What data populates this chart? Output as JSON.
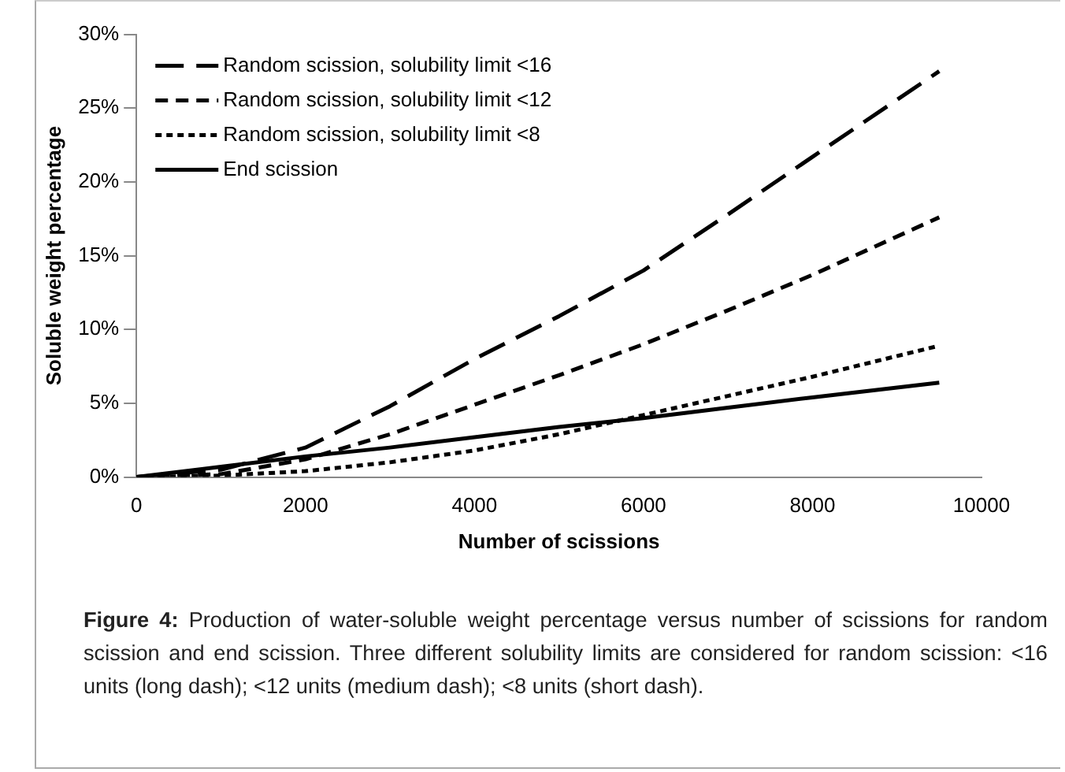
{
  "chart_data": {
    "type": "line",
    "xlabel": "Number of scissions",
    "ylabel": "Soluble weight percentage",
    "annotations": [
      "Figure 4: Production of water-soluble weight percentage versus number of scissions for random scission and end scission. Three different solubility limits are considered for random scission: <16 units (long dash); <12 units (medium dash); <8 units (short dash)."
    ],
    "x": [
      0,
      1000,
      2000,
      3000,
      4000,
      5000,
      6000,
      7000,
      8000,
      9500
    ],
    "series": [
      {
        "name": "Random scission, solubility limit <16",
        "color": "#000000",
        "line_style": "dashed",
        "values": [
          0,
          0.5,
          2.0,
          4.8,
          8.0,
          10.9,
          14.0,
          17.8,
          21.7,
          27.5
        ]
      },
      {
        "name": "Random scission, solubility limit <12",
        "color": "#000000",
        "line_style": "dashed",
        "values": [
          0,
          0.2,
          1.2,
          2.9,
          4.9,
          6.9,
          9.0,
          11.3,
          13.7,
          17.6
        ]
      },
      {
        "name": "Random scission, solubility limit <8",
        "color": "#000000",
        "line_style": "dotted",
        "values": [
          0,
          0.1,
          0.4,
          1.0,
          1.8,
          2.9,
          4.2,
          5.5,
          6.8,
          8.9
        ]
      },
      {
        "name": "End scission",
        "color": "#000000",
        "line_style": "solid",
        "values": [
          0,
          0.7,
          1.4,
          2.0,
          2.7,
          3.4,
          4.0,
          4.7,
          5.4,
          6.4
        ]
      }
    ],
    "xlim": [
      0,
      10000
    ],
    "xticks": [
      0,
      2000,
      4000,
      6000,
      8000,
      10000
    ],
    "ylim": [
      0,
      30
    ],
    "yticks": [
      {
        "value": 0,
        "label": "0%"
      },
      {
        "value": 5,
        "label": "5%"
      },
      {
        "value": 10,
        "label": "10%"
      },
      {
        "value": 15,
        "label": "15%"
      },
      {
        "value": 20,
        "label": "20%"
      },
      {
        "value": 25,
        "label": "25%"
      },
      {
        "value": 30,
        "label": "30%"
      }
    ],
    "grid": false,
    "legend": "top left",
    "marker": "none"
  }
}
